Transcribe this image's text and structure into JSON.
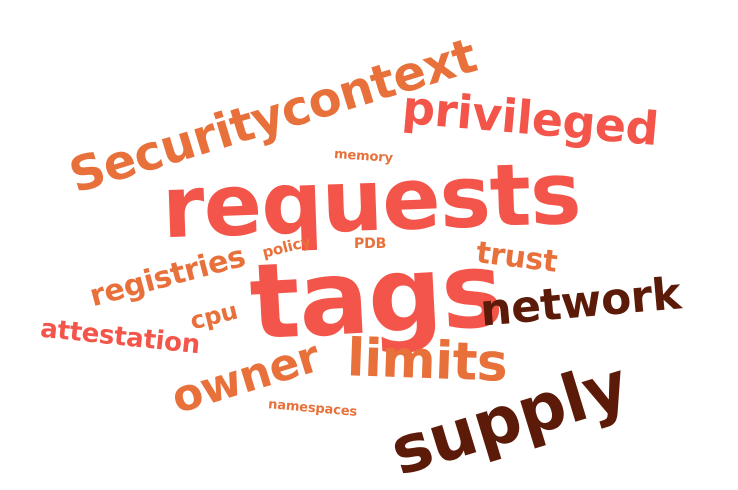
{
  "palette": {
    "coral": "#F4554A",
    "orange": "#E8713B",
    "dark_brown": "#5C1A08"
  },
  "words": [
    {
      "id": "requests",
      "text": "requests",
      "color": "coral"
    },
    {
      "id": "tags",
      "text": "tags",
      "color": "coral"
    },
    {
      "id": "securitycontext",
      "text": "Securitycontext",
      "color": "orange"
    },
    {
      "id": "privileged",
      "text": "privileged",
      "color": "coral"
    },
    {
      "id": "supply",
      "text": "supply",
      "color": "dark_brown"
    },
    {
      "id": "limits",
      "text": "limits",
      "color": "orange"
    },
    {
      "id": "network",
      "text": "network",
      "color": "dark_brown"
    },
    {
      "id": "owner",
      "text": "owner",
      "color": "orange"
    },
    {
      "id": "registries",
      "text": "registries",
      "color": "orange"
    },
    {
      "id": "attestation",
      "text": "attestation",
      "color": "coral"
    },
    {
      "id": "trust",
      "text": "trust",
      "color": "orange"
    },
    {
      "id": "cpu",
      "text": "cpu",
      "color": "orange"
    },
    {
      "id": "memory",
      "text": "memory",
      "color": "orange"
    },
    {
      "id": "policy",
      "text": "policy",
      "color": "orange"
    },
    {
      "id": "pdb",
      "text": "PDB",
      "color": "orange"
    },
    {
      "id": "namespaces",
      "text": "namespaces",
      "color": "orange"
    }
  ]
}
